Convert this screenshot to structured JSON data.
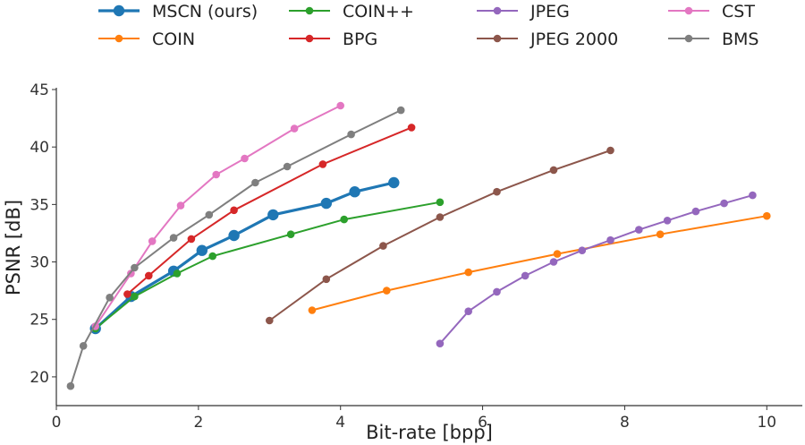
{
  "chart_data": {
    "type": "line",
    "xlabel": "Bit-rate [bpp]",
    "ylabel": "PSNR [dB]",
    "xlim": [
      0,
      10.5
    ],
    "ylim": [
      17.5,
      45
    ],
    "xticks": [
      0,
      2,
      4,
      6,
      8,
      10
    ],
    "yticks": [
      20,
      25,
      30,
      35,
      40,
      45
    ],
    "grid": false,
    "legend": "top",
    "series": [
      {
        "name": "MSCN (ours)",
        "color": "#1f77b4",
        "emphasized": true,
        "x": [
          0.55,
          1.05,
          1.65,
          2.05,
          2.5,
          3.05,
          3.8,
          4.2,
          4.75
        ],
        "y": [
          24.2,
          27.0,
          29.2,
          31.0,
          32.3,
          34.1,
          35.1,
          36.1,
          36.9
        ]
      },
      {
        "name": "COIN",
        "color": "#ff7f0e",
        "x": [
          3.6,
          4.65,
          5.8,
          7.05,
          8.5,
          10.0
        ],
        "y": [
          25.8,
          27.5,
          29.1,
          30.7,
          32.4,
          34.0
        ]
      },
      {
        "name": "COIN++",
        "color": "#2ca02c",
        "x": [
          0.55,
          1.1,
          1.7,
          2.2,
          3.3,
          4.05,
          5.4
        ],
        "y": [
          24.2,
          27.0,
          29.0,
          30.5,
          32.4,
          33.7,
          35.2
        ]
      },
      {
        "name": "BPG",
        "color": "#d62728",
        "x": [
          1.0,
          1.3,
          1.9,
          2.5,
          3.75,
          5.0
        ],
        "y": [
          27.2,
          28.8,
          32.0,
          34.5,
          38.5,
          41.7
        ]
      },
      {
        "name": "JPEG",
        "color": "#9467bd",
        "x": [
          5.4,
          5.8,
          6.2,
          6.6,
          7.0,
          7.4,
          7.8,
          8.2,
          8.6,
          9.0,
          9.4,
          9.8
        ],
        "y": [
          22.9,
          25.7,
          27.4,
          28.8,
          30.0,
          31.0,
          31.9,
          32.8,
          33.6,
          34.4,
          35.1,
          35.8
        ]
      },
      {
        "name": "JPEG 2000",
        "color": "#8c564b",
        "x": [
          3.0,
          3.8,
          4.6,
          5.4,
          6.2,
          7.0,
          7.8
        ],
        "y": [
          24.9,
          28.5,
          31.4,
          33.9,
          36.1,
          38.0,
          39.7
        ]
      },
      {
        "name": "CST",
        "color": "#e377c2",
        "x": [
          0.55,
          1.05,
          1.35,
          1.75,
          2.25,
          2.65,
          3.35,
          4.0
        ],
        "y": [
          24.4,
          29.0,
          31.8,
          34.9,
          37.6,
          39.0,
          41.6,
          43.6
        ]
      },
      {
        "name": "BMS",
        "color": "#7f7f7f",
        "x": [
          0.2,
          0.38,
          0.75,
          1.1,
          1.65,
          2.15,
          2.8,
          3.25,
          4.15,
          4.85
        ],
        "y": [
          19.2,
          22.7,
          26.9,
          29.5,
          32.1,
          34.1,
          36.9,
          38.3,
          41.1,
          43.2
        ]
      }
    ]
  }
}
